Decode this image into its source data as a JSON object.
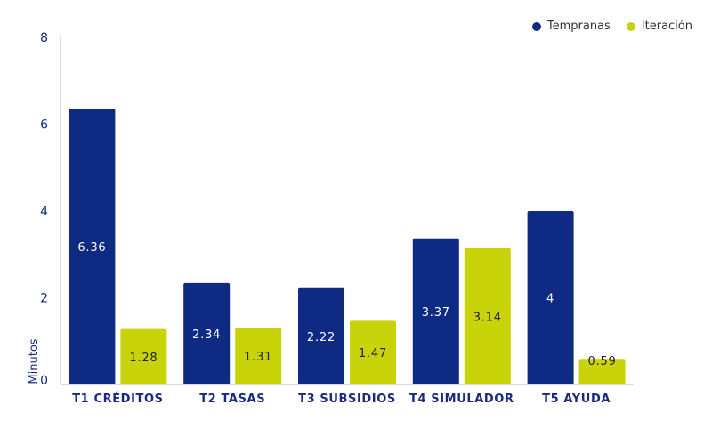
{
  "chart_data": {
    "type": "bar",
    "categories": [
      "T1 CRÉDITOS",
      "T2 TASAS",
      "T3 SUBSIDIOS",
      "T4 SIMULADOR",
      "T5 AYUDA"
    ],
    "series": [
      {
        "name": "Tempranas",
        "values": [
          6.36,
          2.34,
          2.22,
          3.37,
          4
        ],
        "color": "#0f2a82",
        "label_color": "#ffffff"
      },
      {
        "name": "Iteración",
        "values": [
          1.28,
          1.31,
          1.47,
          3.14,
          0.59
        ],
        "color": "#c9d30a",
        "label_color": "#222222"
      }
    ],
    "value_labels": {
      "Tempranas": [
        "6.36",
        "2.34",
        "2.22",
        "3.37",
        "4"
      ],
      "Iteración": [
        "1.28",
        "1.31",
        "1.47",
        "3.14",
        "0.59"
      ]
    },
    "ylabel": "Minutos",
    "ylim": [
      0,
      8
    ],
    "yticks": [
      "0",
      "2",
      "4",
      "6",
      "8"
    ],
    "grid": false,
    "legend_position": "top-right"
  }
}
